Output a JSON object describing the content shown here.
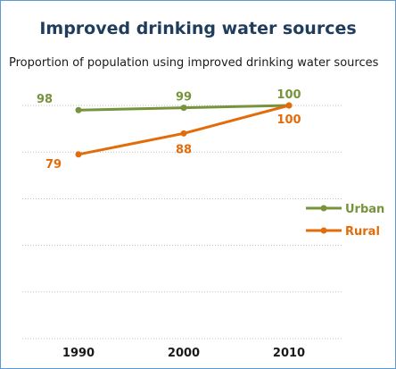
{
  "chart_data": {
    "type": "line",
    "title": "Improved drinking water sources",
    "subtitle": "Proportion of population using improved drinking water sources",
    "x": [
      "1990",
      "2000",
      "2010"
    ],
    "ylim": [
      0,
      100
    ],
    "grid": true,
    "legend_placement": "right",
    "series": [
      {
        "name": "Urban",
        "values": [
          98,
          99,
          100
        ],
        "color": "#77933c"
      },
      {
        "name": "Rural",
        "values": [
          79,
          88,
          100
        ],
        "color": "#e36c0a"
      }
    ]
  }
}
